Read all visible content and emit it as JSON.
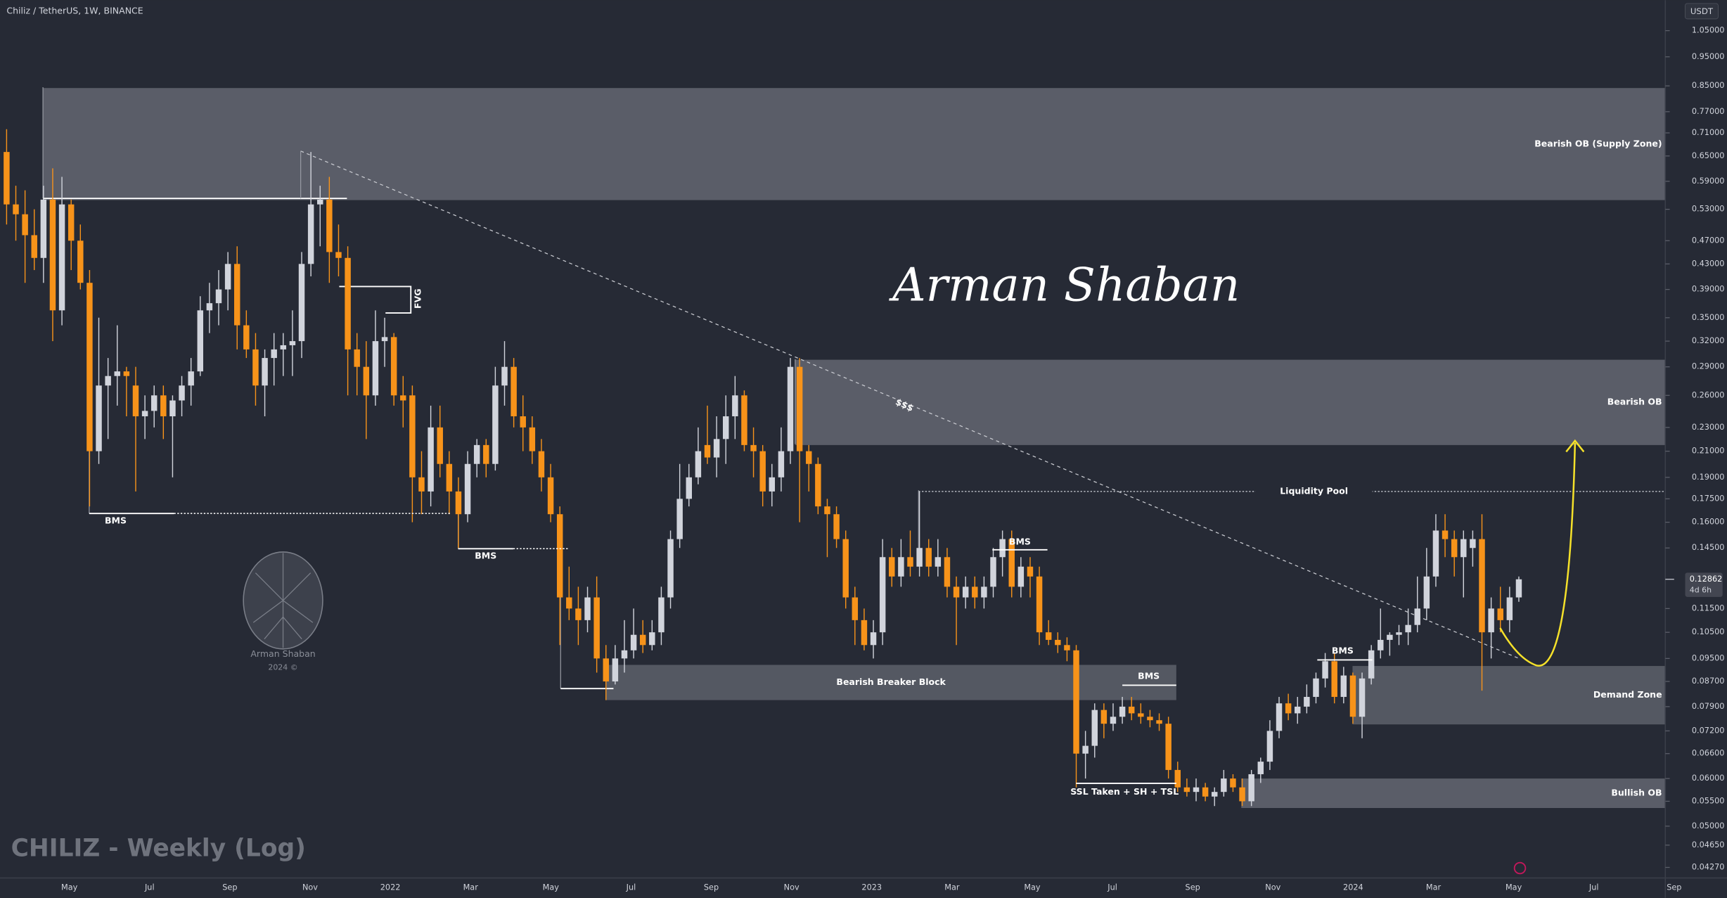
{
  "header": {
    "symbol": "Chiliz / TetherUS, 1W, BINANCE"
  },
  "chart_data": {
    "type": "candlestick",
    "watermark": "CHILIZ - Weekly (Log)",
    "currency": "USDT",
    "log_scale": true,
    "up_color": "#d1d4dc",
    "down_color": "#f7931a",
    "ylim": [
      0.041,
      1.18
    ],
    "yticks": [
      {
        "value": 1.05,
        "label": "1.05000"
      },
      {
        "value": 0.95,
        "label": "0.95000"
      },
      {
        "value": 0.85,
        "label": "0.85000"
      },
      {
        "value": 0.77,
        "label": "0.77000"
      },
      {
        "value": 0.71,
        "label": "0.71000"
      },
      {
        "value": 0.65,
        "label": "0.65000"
      },
      {
        "value": 0.59,
        "label": "0.59000"
      },
      {
        "value": 0.53,
        "label": "0.53000"
      },
      {
        "value": 0.47,
        "label": "0.47000"
      },
      {
        "value": 0.43,
        "label": "0.43000"
      },
      {
        "value": 0.39,
        "label": "0.39000"
      },
      {
        "value": 0.35,
        "label": "0.35000"
      },
      {
        "value": 0.32,
        "label": "0.32000"
      },
      {
        "value": 0.29,
        "label": "0.29000"
      },
      {
        "value": 0.26,
        "label": "0.26000"
      },
      {
        "value": 0.23,
        "label": "0.23000"
      },
      {
        "value": 0.21,
        "label": "0.21000"
      },
      {
        "value": 0.19,
        "label": "0.19000"
      },
      {
        "value": 0.175,
        "label": "0.17500"
      },
      {
        "value": 0.16,
        "label": "0.16000"
      },
      {
        "value": 0.145,
        "label": "0.14500"
      },
      {
        "value": 0.115,
        "label": "0.11500"
      },
      {
        "value": 0.105,
        "label": "0.10500"
      },
      {
        "value": 0.095,
        "label": "0.09500"
      },
      {
        "value": 0.087,
        "label": "0.08700"
      },
      {
        "value": 0.079,
        "label": "0.07900"
      },
      {
        "value": 0.072,
        "label": "0.07200"
      },
      {
        "value": 0.066,
        "label": "0.06600"
      },
      {
        "value": 0.06,
        "label": "0.06000"
      },
      {
        "value": 0.055,
        "label": "0.05500"
      },
      {
        "value": 0.05,
        "label": "0.05000"
      },
      {
        "value": 0.0465,
        "label": "0.04650"
      },
      {
        "value": 0.0427,
        "label": "0.04270"
      }
    ],
    "xlabels": [
      "May",
      "Jul",
      "Sep",
      "Nov",
      "2022",
      "Mar",
      "May",
      "Jul",
      "Sep",
      "Nov",
      "2023",
      "Mar",
      "May",
      "Jul",
      "Sep",
      "Nov",
      "2024",
      "Mar",
      "May",
      "Jul",
      "Sep"
    ],
    "candles": {
      "open": [
        0.66,
        0.54,
        0.52,
        0.48,
        0.44,
        0.55,
        0.36,
        0.54,
        0.47,
        0.4,
        0.21,
        0.27,
        0.28,
        0.285,
        0.27,
        0.24,
        0.245,
        0.26,
        0.24,
        0.255,
        0.27,
        0.285,
        0.36,
        0.37,
        0.39,
        0.43,
        0.34,
        0.31,
        0.27,
        0.3,
        0.31,
        0.315,
        0.32,
        0.43,
        0.54,
        0.55,
        0.45,
        0.44,
        0.31,
        0.29,
        0.26,
        0.32,
        0.325,
        0.26,
        0.26,
        0.19,
        0.18,
        0.23,
        0.2,
        0.18,
        0.165,
        0.2,
        0.215,
        0.2,
        0.27,
        0.29,
        0.24,
        0.23,
        0.21,
        0.19,
        0.165,
        0.12,
        0.115,
        0.11,
        0.12,
        0.095,
        0.087,
        0.095,
        0.098,
        0.104,
        0.1,
        0.105,
        0.12,
        0.15,
        0.175,
        0.19,
        0.215,
        0.205,
        0.22,
        0.24,
        0.26,
        0.215,
        0.21,
        0.18,
        0.19,
        0.21,
        0.29,
        0.21,
        0.2,
        0.17,
        0.165,
        0.15,
        0.12,
        0.11,
        0.1,
        0.105,
        0.14,
        0.13,
        0.14,
        0.135,
        0.145,
        0.135,
        0.14,
        0.125,
        0.12,
        0.125,
        0.12,
        0.125,
        0.14,
        0.15,
        0.125,
        0.135,
        0.13,
        0.105,
        0.102,
        0.1,
        0.098,
        0.066,
        0.068,
        0.078,
        0.074,
        0.076,
        0.079,
        0.077,
        0.076,
        0.075,
        0.074,
        0.062,
        0.058,
        0.057,
        0.058,
        0.056,
        0.057,
        0.06,
        0.058,
        0.055,
        0.061,
        0.064,
        0.072,
        0.08,
        0.077,
        0.079,
        0.082,
        0.088,
        0.094,
        0.082,
        0.089,
        0.076,
        0.088,
        0.098,
        0.102,
        0.104,
        0.105,
        0.108,
        0.115,
        0.13,
        0.155,
        0.15,
        0.14,
        0.145,
        0.15,
        0.105,
        0.115,
        0.11,
        0.12
      ],
      "high": [
        0.72,
        0.58,
        0.57,
        0.53,
        0.58,
        0.62,
        0.6,
        0.55,
        0.5,
        0.42,
        0.35,
        0.3,
        0.34,
        0.29,
        0.29,
        0.26,
        0.27,
        0.27,
        0.26,
        0.28,
        0.3,
        0.38,
        0.4,
        0.42,
        0.45,
        0.46,
        0.36,
        0.33,
        0.31,
        0.33,
        0.33,
        0.36,
        0.45,
        0.66,
        0.58,
        0.6,
        0.5,
        0.46,
        0.33,
        0.32,
        0.36,
        0.35,
        0.33,
        0.28,
        0.27,
        0.21,
        0.25,
        0.25,
        0.21,
        0.19,
        0.21,
        0.22,
        0.22,
        0.29,
        0.32,
        0.3,
        0.26,
        0.24,
        0.22,
        0.2,
        0.17,
        0.135,
        0.125,
        0.125,
        0.13,
        0.1,
        0.1,
        0.11,
        0.115,
        0.11,
        0.11,
        0.125,
        0.155,
        0.2,
        0.2,
        0.23,
        0.25,
        0.24,
        0.26,
        0.28,
        0.265,
        0.23,
        0.215,
        0.2,
        0.23,
        0.3,
        0.3,
        0.215,
        0.205,
        0.175,
        0.17,
        0.155,
        0.125,
        0.115,
        0.11,
        0.15,
        0.145,
        0.15,
        0.155,
        0.18,
        0.15,
        0.15,
        0.145,
        0.13,
        0.13,
        0.13,
        0.13,
        0.145,
        0.155,
        0.155,
        0.14,
        0.14,
        0.135,
        0.11,
        0.105,
        0.103,
        0.1,
        0.072,
        0.08,
        0.08,
        0.08,
        0.082,
        0.082,
        0.08,
        0.078,
        0.077,
        0.076,
        0.064,
        0.06,
        0.06,
        0.059,
        0.058,
        0.062,
        0.061,
        0.06,
        0.062,
        0.065,
        0.075,
        0.082,
        0.083,
        0.082,
        0.086,
        0.09,
        0.097,
        0.097,
        0.092,
        0.09,
        0.09,
        0.1,
        0.115,
        0.105,
        0.108,
        0.115,
        0.13,
        0.145,
        0.165,
        0.165,
        0.155,
        0.155,
        0.155,
        0.165,
        0.12,
        0.125,
        0.125,
        0.13
      ],
      "low": [
        0.5,
        0.47,
        0.4,
        0.42,
        0.4,
        0.32,
        0.34,
        0.42,
        0.39,
        0.17,
        0.2,
        0.22,
        0.25,
        0.24,
        0.18,
        0.22,
        0.23,
        0.22,
        0.19,
        0.24,
        0.25,
        0.28,
        0.33,
        0.34,
        0.36,
        0.31,
        0.3,
        0.25,
        0.24,
        0.27,
        0.28,
        0.28,
        0.3,
        0.41,
        0.46,
        0.4,
        0.41,
        0.26,
        0.26,
        0.22,
        0.25,
        0.29,
        0.25,
        0.23,
        0.16,
        0.165,
        0.17,
        0.19,
        0.165,
        0.145,
        0.16,
        0.19,
        0.19,
        0.195,
        0.25,
        0.23,
        0.21,
        0.2,
        0.18,
        0.16,
        0.1,
        0.11,
        0.1,
        0.105,
        0.09,
        0.081,
        0.086,
        0.09,
        0.095,
        0.097,
        0.098,
        0.1,
        0.115,
        0.145,
        0.17,
        0.185,
        0.2,
        0.19,
        0.2,
        0.22,
        0.21,
        0.19,
        0.17,
        0.17,
        0.18,
        0.2,
        0.16,
        0.18,
        0.165,
        0.14,
        0.145,
        0.115,
        0.1,
        0.098,
        0.095,
        0.1,
        0.125,
        0.125,
        0.13,
        0.13,
        0.13,
        0.13,
        0.12,
        0.1,
        0.115,
        0.115,
        0.115,
        0.12,
        0.13,
        0.12,
        0.12,
        0.12,
        0.1,
        0.1,
        0.097,
        0.094,
        0.058,
        0.06,
        0.065,
        0.07,
        0.072,
        0.074,
        0.075,
        0.074,
        0.073,
        0.072,
        0.06,
        0.057,
        0.056,
        0.055,
        0.055,
        0.054,
        0.056,
        0.057,
        0.054,
        0.054,
        0.059,
        0.062,
        0.07,
        0.075,
        0.074,
        0.077,
        0.08,
        0.085,
        0.08,
        0.08,
        0.074,
        0.07,
        0.086,
        0.095,
        0.096,
        0.1,
        0.1,
        0.105,
        0.11,
        0.125,
        0.14,
        0.13,
        0.12,
        0.135,
        0.084,
        0.095,
        0.105,
        0.105,
        0.118
      ],
      "close": [
        0.54,
        0.52,
        0.48,
        0.44,
        0.55,
        0.36,
        0.54,
        0.47,
        0.4,
        0.21,
        0.27,
        0.28,
        0.285,
        0.28,
        0.24,
        0.245,
        0.26,
        0.24,
        0.255,
        0.27,
        0.285,
        0.36,
        0.37,
        0.39,
        0.43,
        0.34,
        0.31,
        0.27,
        0.3,
        0.31,
        0.315,
        0.32,
        0.43,
        0.54,
        0.55,
        0.45,
        0.44,
        0.31,
        0.29,
        0.26,
        0.32,
        0.325,
        0.26,
        0.255,
        0.19,
        0.18,
        0.23,
        0.2,
        0.18,
        0.165,
        0.2,
        0.215,
        0.2,
        0.27,
        0.29,
        0.24,
        0.23,
        0.21,
        0.19,
        0.165,
        0.12,
        0.115,
        0.11,
        0.12,
        0.095,
        0.087,
        0.095,
        0.098,
        0.104,
        0.1,
        0.105,
        0.12,
        0.15,
        0.175,
        0.19,
        0.21,
        0.205,
        0.22,
        0.24,
        0.26,
        0.215,
        0.21,
        0.18,
        0.19,
        0.21,
        0.29,
        0.21,
        0.2,
        0.17,
        0.165,
        0.15,
        0.12,
        0.11,
        0.1,
        0.105,
        0.14,
        0.13,
        0.14,
        0.135,
        0.145,
        0.135,
        0.14,
        0.125,
        0.12,
        0.125,
        0.12,
        0.125,
        0.14,
        0.15,
        0.125,
        0.135,
        0.13,
        0.105,
        0.102,
        0.1,
        0.098,
        0.066,
        0.068,
        0.078,
        0.074,
        0.076,
        0.079,
        0.077,
        0.076,
        0.075,
        0.074,
        0.062,
        0.058,
        0.057,
        0.058,
        0.056,
        0.057,
        0.06,
        0.058,
        0.055,
        0.061,
        0.064,
        0.072,
        0.08,
        0.077,
        0.079,
        0.082,
        0.088,
        0.094,
        0.082,
        0.089,
        0.076,
        0.088,
        0.098,
        0.102,
        0.104,
        0.105,
        0.108,
        0.115,
        0.13,
        0.155,
        0.15,
        0.14,
        0.15,
        0.15,
        0.105,
        0.115,
        0.11,
        0.12,
        0.12862
      ]
    },
    "last_price": 0.12862,
    "countdown": "4d 6h",
    "zones": [
      {
        "label": "Bearish OB (Supply Zone)",
        "top": 0.843,
        "bottom": 0.549
      },
      {
        "label": "Bearish OB",
        "top": 0.298,
        "bottom": 0.215
      },
      {
        "label": "Bearish Breaker Block",
        "top": 0.0927,
        "bottom": 0.081
      },
      {
        "label": "Demand Zone",
        "top": 0.0923,
        "bottom": 0.0738
      },
      {
        "label": "Bullish OB",
        "top": 0.06,
        "bottom": 0.0536
      }
    ],
    "levels": [
      {
        "label": "Liquidity Pool",
        "value": 0.18
      }
    ],
    "annotations": [
      "BMS",
      "BMS",
      "FVG",
      "$$$",
      "BMS",
      "BMS",
      "SSL Taken + SH + TSL",
      "BMS"
    ],
    "signature": "Arman Shaban",
    "logo": {
      "name": "Arman Shaban",
      "year": "2024 ©"
    }
  }
}
